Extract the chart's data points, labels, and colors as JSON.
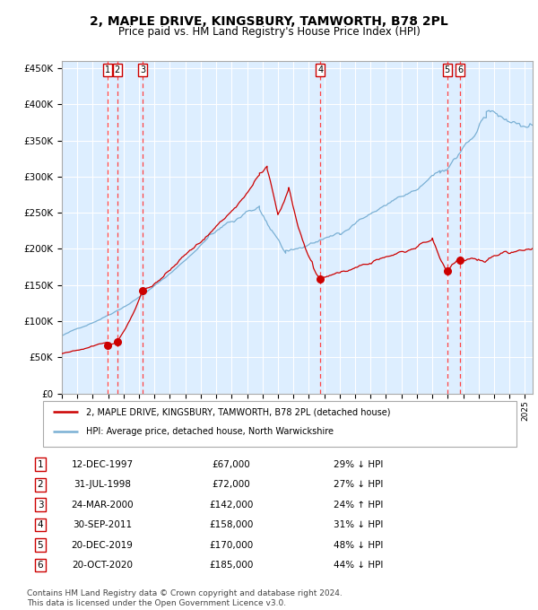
{
  "title": "2, MAPLE DRIVE, KINGSBURY, TAMWORTH, B78 2PL",
  "subtitle": "Price paid vs. HM Land Registry's House Price Index (HPI)",
  "title_fontsize": 10,
  "subtitle_fontsize": 8.5,
  "xlim": [
    1995.0,
    2025.5
  ],
  "ylim": [
    0,
    460000
  ],
  "yticks": [
    0,
    50000,
    100000,
    150000,
    200000,
    250000,
    300000,
    350000,
    400000,
    450000
  ],
  "ytick_labels": [
    "£0",
    "£50K",
    "£100K",
    "£150K",
    "£200K",
    "£250K",
    "£300K",
    "£350K",
    "£400K",
    "£450K"
  ],
  "background_color": "#ffffff",
  "plot_bg_color": "#ddeeff",
  "grid_color": "#ffffff",
  "red_line_color": "#cc0000",
  "blue_line_color": "#7ab0d4",
  "sale_marker_color": "#cc0000",
  "dashed_line_color": "#ff4444",
  "sales": [
    {
      "id": 1,
      "date_num": 1997.95,
      "price": 67000,
      "label": "1"
    },
    {
      "id": 2,
      "date_num": 1998.58,
      "price": 72000,
      "label": "2"
    },
    {
      "id": 3,
      "date_num": 2000.23,
      "price": 142000,
      "label": "3"
    },
    {
      "id": 4,
      "date_num": 2011.75,
      "price": 158000,
      "label": "4"
    },
    {
      "id": 5,
      "date_num": 2019.97,
      "price": 170000,
      "label": "5"
    },
    {
      "id": 6,
      "date_num": 2020.8,
      "price": 185000,
      "label": "6"
    }
  ],
  "legend_entries": [
    {
      "label": "2, MAPLE DRIVE, KINGSBURY, TAMWORTH, B78 2PL (detached house)",
      "color": "#cc0000"
    },
    {
      "label": "HPI: Average price, detached house, North Warwickshire",
      "color": "#7ab0d4"
    }
  ],
  "table_rows": [
    {
      "id": "1",
      "date": "12-DEC-1997",
      "price": "£67,000",
      "hpi": "29% ↓ HPI"
    },
    {
      "id": "2",
      "date": "31-JUL-1998",
      "price": "£72,000",
      "hpi": "27% ↓ HPI"
    },
    {
      "id": "3",
      "date": "24-MAR-2000",
      "price": "£142,000",
      "hpi": "24% ↑ HPI"
    },
    {
      "id": "4",
      "date": "30-SEP-2011",
      "price": "£158,000",
      "hpi": "31% ↓ HPI"
    },
    {
      "id": "5",
      "date": "20-DEC-2019",
      "price": "£170,000",
      "hpi": "48% ↓ HPI"
    },
    {
      "id": "6",
      "date": "20-OCT-2020",
      "price": "£185,000",
      "hpi": "44% ↓ HPI"
    }
  ],
  "footer": "Contains HM Land Registry data © Crown copyright and database right 2024.\nThis data is licensed under the Open Government Licence v3.0.",
  "footer_fontsize": 6.5
}
